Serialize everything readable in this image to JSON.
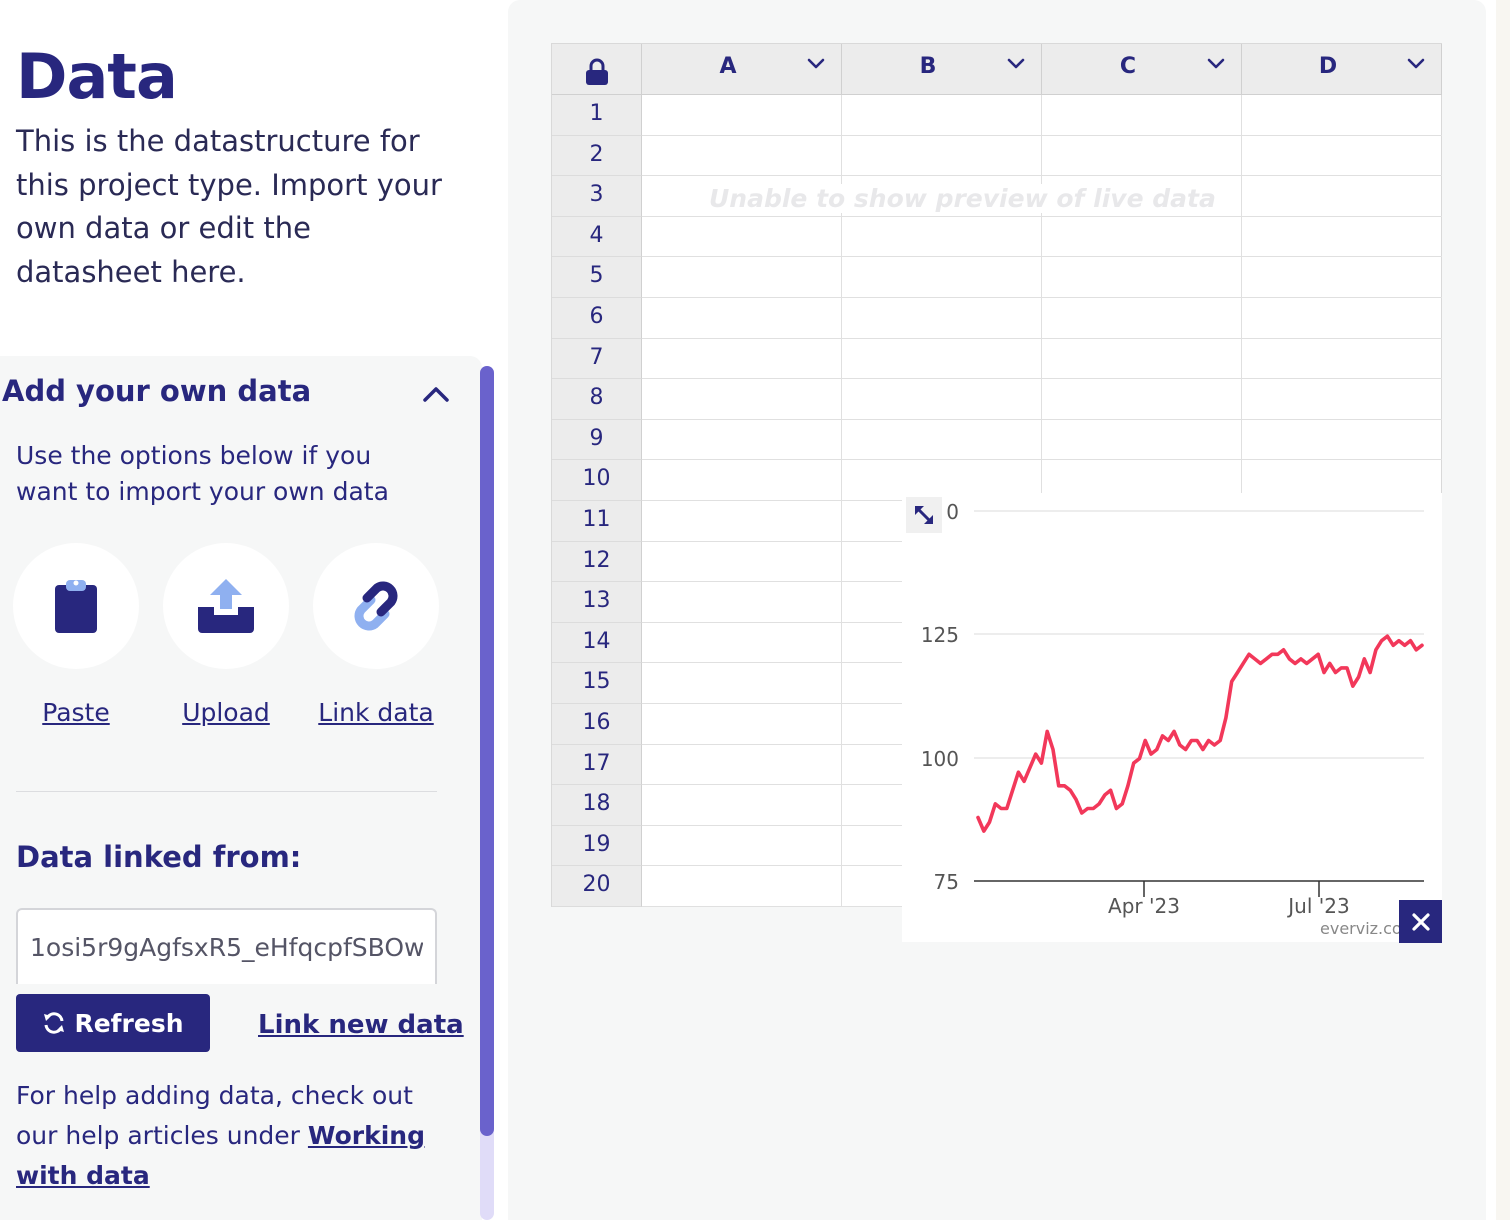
{
  "panel": {
    "title": "Data",
    "description": "This is the datastructure for this project type. Import your own data or edit the datasheet here."
  },
  "import_section": {
    "title": "Add your own data",
    "description": "Use the options below if you want to import your own data",
    "options": [
      {
        "label": "Paste",
        "icon": "clipboard-icon"
      },
      {
        "label": "Upload",
        "icon": "upload-icon"
      },
      {
        "label": "Link data",
        "icon": "link-icon"
      }
    ],
    "linked_title": "Data linked from:",
    "linked_value": "1osi5r9gAgfsxR5_eHfqcpfSBOw",
    "refresh_label": "Refresh",
    "link_new_label": "Link new data",
    "help_prefix": "For help adding data, check out our help articles under ",
    "help_link": "Working with data"
  },
  "sheet": {
    "columns": [
      "A",
      "B",
      "C",
      "D"
    ],
    "rows": [
      "1",
      "2",
      "3",
      "4",
      "5",
      "6",
      "7",
      "8",
      "9",
      "10",
      "11",
      "12",
      "13",
      "14",
      "15",
      "16",
      "17",
      "18",
      "19",
      "20"
    ],
    "overlay_text": "Unable to show preview of live data"
  },
  "chart_data": {
    "type": "line",
    "y_ticks": [
      "0",
      "125",
      "100",
      "75"
    ],
    "x_ticks": [
      "Apr '23",
      "Jul '23"
    ],
    "credit": "everviz.com",
    "colors": {
      "line": "#f2385a"
    },
    "ylim": [
      75,
      150
    ],
    "series": [
      {
        "values": [
          89,
          86,
          88,
          92,
          91,
          91,
          95,
          99,
          97,
          100,
          103,
          101,
          108,
          104,
          96,
          96,
          95,
          93,
          90,
          91,
          91,
          92,
          94,
          95,
          91,
          92,
          96,
          101,
          102,
          106,
          103,
          104,
          107,
          106,
          108,
          105,
          104,
          106,
          106,
          104,
          106,
          105,
          106,
          111,
          119,
          121,
          123,
          125,
          124,
          123,
          124,
          125,
          125,
          126,
          124,
          123,
          124,
          123,
          124,
          125,
          121,
          123,
          121,
          122,
          122,
          118,
          120,
          124,
          121,
          126,
          128,
          129,
          127,
          128,
          127,
          128,
          126,
          127
        ]
      }
    ]
  },
  "icons": {
    "lock": "lock-icon",
    "chevron": "chevron-down-icon",
    "expand": "expand-icon",
    "close": "close-icon",
    "refresh": "refresh-icon",
    "collapse": "chevron-up-icon"
  }
}
